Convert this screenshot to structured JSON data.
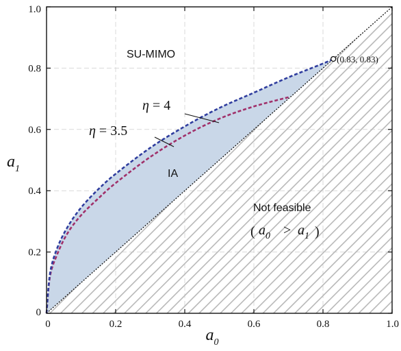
{
  "chart_data": {
    "type": "line",
    "xlabel": "a",
    "xlabel_subscript": "0",
    "ylabel": "a",
    "ylabel_subscript": "1",
    "xlim": [
      0,
      1
    ],
    "ylim": [
      0,
      1
    ],
    "x_ticks": [
      "0",
      "0.2",
      "0.4",
      "0.6",
      "0.8",
      "1.0"
    ],
    "y_ticks": [
      "0",
      "0.2",
      "0.4",
      "0.6",
      "0.8",
      "1.0"
    ],
    "grid": true,
    "colors": {
      "feasible_fill": "#c9d7e8",
      "eta4_line": "#2f3d9e",
      "eta35_line": "#a0306a",
      "diagonal": "#111111",
      "hatch": "#b8b8b8"
    },
    "series": [
      {
        "name": "η = 4",
        "x": [
          0,
          0.01,
          0.03,
          0.06,
          0.1,
          0.15,
          0.2,
          0.3,
          0.4,
          0.5,
          0.6,
          0.7,
          0.8,
          0.83
        ],
        "y": [
          0,
          0.13,
          0.21,
          0.28,
          0.345,
          0.405,
          0.455,
          0.54,
          0.61,
          0.67,
          0.72,
          0.77,
          0.815,
          0.83
        ]
      },
      {
        "name": "η = 3.5",
        "x": [
          0,
          0.01,
          0.03,
          0.06,
          0.1,
          0.15,
          0.2,
          0.3,
          0.4,
          0.5,
          0.6,
          0.7
        ],
        "y": [
          0,
          0.12,
          0.19,
          0.26,
          0.32,
          0.375,
          0.425,
          0.51,
          0.58,
          0.635,
          0.675,
          0.705
        ]
      }
    ],
    "reference_line": {
      "x": [
        0,
        1
      ],
      "y": [
        0,
        1
      ]
    },
    "annotations": {
      "eta4": {
        "prefix": "η",
        "text": " = 4"
      },
      "eta35": {
        "prefix": "η",
        "text": " = 3.5"
      },
      "su_mimo": "SU-MIMO",
      "ia": "IA",
      "not_feasible": "Not feasible",
      "condition_a": "a",
      "condition_sub0": "0",
      "condition_gt": ">",
      "condition_sub1": "1",
      "point_label": "(0.83, 0.83)",
      "point": {
        "x": 0.83,
        "y": 0.83
      }
    }
  }
}
